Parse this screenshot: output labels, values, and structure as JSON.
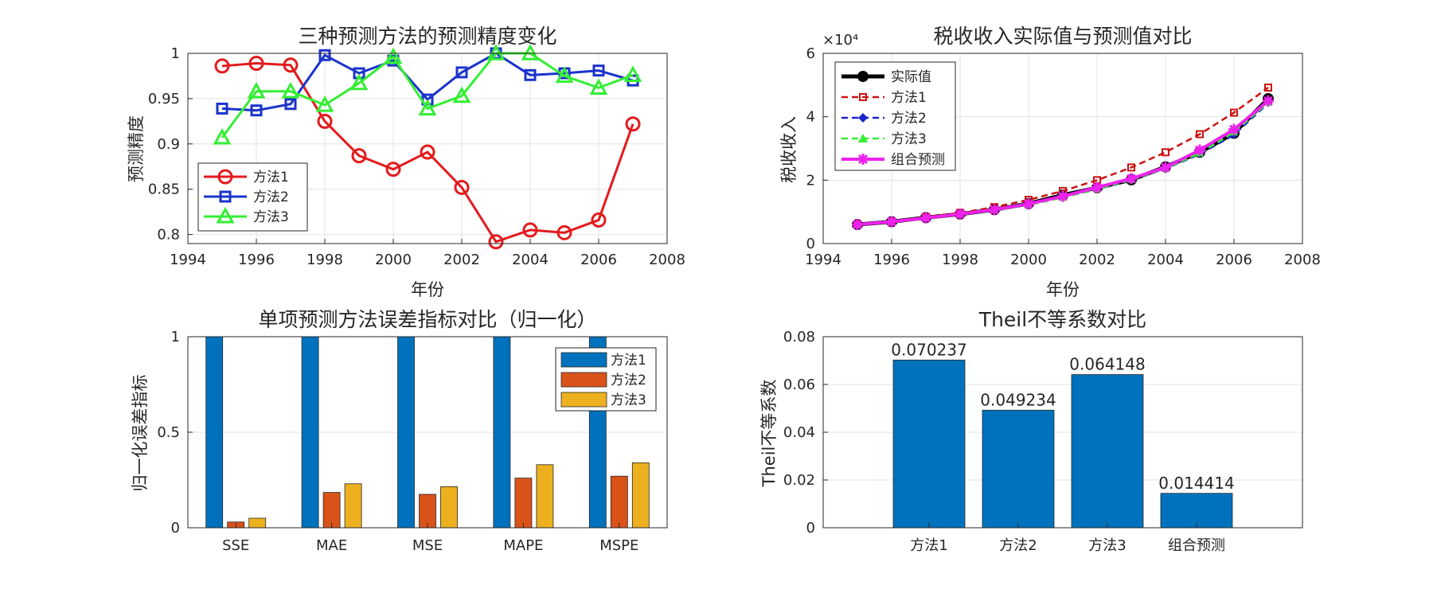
{
  "chart_data": [
    {
      "id": "accuracy",
      "type": "line",
      "title": "三种预测方法的预测精度变化",
      "xlabel": "年份",
      "ylabel": "预测精度",
      "xlim": [
        1994,
        2008
      ],
      "ylim": [
        0.79,
        1.0
      ],
      "xticks": [
        1994,
        1996,
        1998,
        2000,
        2002,
        2004,
        2006,
        2008
      ],
      "yticks": [
        0.8,
        0.85,
        0.9,
        0.95,
        1
      ],
      "ytick_labels": [
        "0.8",
        "0.85",
        "0.9",
        "0.95",
        "1"
      ],
      "grid": true,
      "legend": "bottom-left",
      "x": [
        1995,
        1996,
        1997,
        1998,
        1999,
        2000,
        2001,
        2002,
        2003,
        2004,
        2005,
        2006,
        2007
      ],
      "series": [
        {
          "name": "方法1",
          "color": "#e41a1c",
          "marker": "circle",
          "values": [
            0.986,
            0.989,
            0.987,
            0.925,
            0.887,
            0.872,
            0.891,
            0.852,
            0.792,
            0.805,
            0.802,
            0.816,
            0.922
          ]
        },
        {
          "name": "方法2",
          "color": "#1a33cc",
          "marker": "square",
          "values": [
            0.939,
            0.937,
            0.944,
            0.998,
            0.978,
            0.992,
            0.949,
            0.979,
            1.0,
            0.976,
            0.978,
            0.981,
            0.97
          ]
        },
        {
          "name": "方法3",
          "color": "#33ee33",
          "marker": "triangle",
          "values": [
            0.907,
            0.958,
            0.958,
            0.943,
            0.967,
            0.996,
            0.939,
            0.953,
            1.0,
            1.0,
            0.975,
            0.962,
            0.976
          ]
        }
      ]
    },
    {
      "id": "revenue",
      "type": "line",
      "title": "税收收入实际值与预测值对比",
      "xlabel": "年份",
      "ylabel": "税收收入",
      "exponent_label": "×10⁴",
      "xlim": [
        1994,
        2008
      ],
      "ylim": [
        0,
        6
      ],
      "xticks": [
        1994,
        1996,
        1998,
        2000,
        2002,
        2004,
        2006,
        2008
      ],
      "yticks": [
        0,
        2,
        4,
        6
      ],
      "ytick_labels": [
        "0",
        "2",
        "4",
        "6"
      ],
      "grid": true,
      "legend": "top-left",
      "x": [
        1995,
        1996,
        1997,
        1998,
        1999,
        2000,
        2001,
        2002,
        2003,
        2004,
        2005,
        2006,
        2007
      ],
      "series": [
        {
          "name": "实际值",
          "color": "#000000",
          "style": "solid",
          "marker": "circle",
          "values": [
            0.6,
            0.69,
            0.82,
            0.93,
            1.07,
            1.26,
            1.53,
            1.76,
            2.01,
            2.42,
            2.88,
            3.48,
            4.57
          ]
        },
        {
          "name": "方法1",
          "color": "#cc1111",
          "style": "dashed",
          "marker": "square",
          "values": [
            0.61,
            0.7,
            0.84,
            0.97,
            1.15,
            1.38,
            1.66,
            2.0,
            2.4,
            2.88,
            3.45,
            4.13,
            4.92
          ]
        },
        {
          "name": "方法2",
          "color": "#1a22cc",
          "style": "dashed",
          "marker": "diamond",
          "values": [
            0.6,
            0.68,
            0.81,
            0.93,
            1.06,
            1.24,
            1.46,
            1.71,
            2.0,
            2.36,
            2.82,
            3.43,
            4.43
          ]
        },
        {
          "name": "方法3",
          "color": "#33ee33",
          "style": "dashed",
          "marker": "triangle",
          "values": [
            0.59,
            0.69,
            0.8,
            0.92,
            1.05,
            1.22,
            1.45,
            1.72,
            2.01,
            2.37,
            2.85,
            3.51,
            4.45
          ]
        },
        {
          "name": "组合预测",
          "color": "#ee22ee",
          "style": "solid",
          "marker": "asterisk",
          "values": [
            0.6,
            0.69,
            0.81,
            0.93,
            1.07,
            1.25,
            1.49,
            1.77,
            2.05,
            2.4,
            2.95,
            3.6,
            4.5
          ]
        }
      ]
    },
    {
      "id": "errors",
      "type": "bar",
      "title": "单项预测方法误差指标对比（归一化）",
      "xlabel": "",
      "ylabel": "归一化误差指标",
      "ylim": [
        0,
        1
      ],
      "yticks": [
        0,
        0.5,
        1
      ],
      "ytick_labels": [
        "0",
        "0.5",
        "1"
      ],
      "grid": true,
      "legend": "top-right",
      "categories": [
        "SSE",
        "MAE",
        "MSE",
        "MAPE",
        "MSPE"
      ],
      "series": [
        {
          "name": "方法1",
          "color": "#0072BD",
          "values": [
            1,
            1,
            1,
            1,
            1
          ]
        },
        {
          "name": "方法2",
          "color": "#D95319",
          "values": [
            0.03,
            0.185,
            0.175,
            0.26,
            0.27
          ]
        },
        {
          "name": "方法3",
          "color": "#EDB120",
          "values": [
            0.05,
            0.23,
            0.215,
            0.33,
            0.34
          ]
        }
      ]
    },
    {
      "id": "theil",
      "type": "bar",
      "title": "Theil不等系数对比",
      "xlabel": "",
      "ylabel": "Theil不等系数",
      "ylim": [
        0,
        0.08
      ],
      "yticks": [
        0,
        0.02,
        0.04,
        0.06,
        0.08
      ],
      "ytick_labels": [
        "0",
        "0.02",
        "0.04",
        "0.06",
        "0.08"
      ],
      "grid": true,
      "categories": [
        "方法1",
        "方法2",
        "方法3",
        "组合预测"
      ],
      "color": "#0072BD",
      "values": [
        0.070237,
        0.049234,
        0.064148,
        0.014414
      ],
      "data_labels": [
        "0.070237",
        "0.049234",
        "0.064148",
        "0.014414"
      ]
    }
  ]
}
